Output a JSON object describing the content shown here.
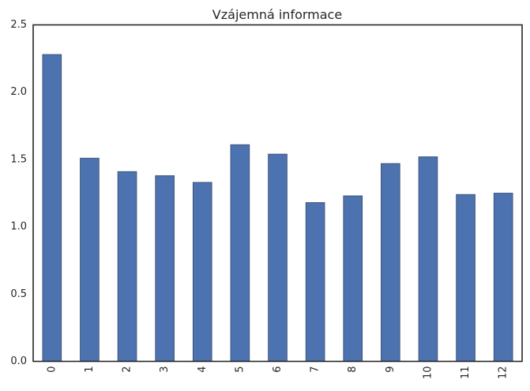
{
  "chart_data": {
    "type": "bar",
    "title": "Vzájemná informace",
    "xlabel": "",
    "ylabel": "",
    "categories": [
      "0",
      "1",
      "2",
      "3",
      "4",
      "5",
      "6",
      "7",
      "8",
      "9",
      "10",
      "11",
      "12"
    ],
    "values": [
      2.28,
      1.51,
      1.41,
      1.38,
      1.33,
      1.61,
      1.54,
      1.18,
      1.23,
      1.47,
      1.52,
      1.24,
      1.25
    ],
    "ylim": [
      0,
      2.5
    ],
    "yticks": [
      "0.0",
      "0.5",
      "1.0",
      "1.5",
      "2.0",
      "2.5"
    ],
    "grid": false,
    "legend": "none",
    "x_tick_rotation": "vertical",
    "colors": {
      "bar": "#4c72b0",
      "frame": "#262626",
      "text": "#262626",
      "background": "#ffffff"
    }
  }
}
